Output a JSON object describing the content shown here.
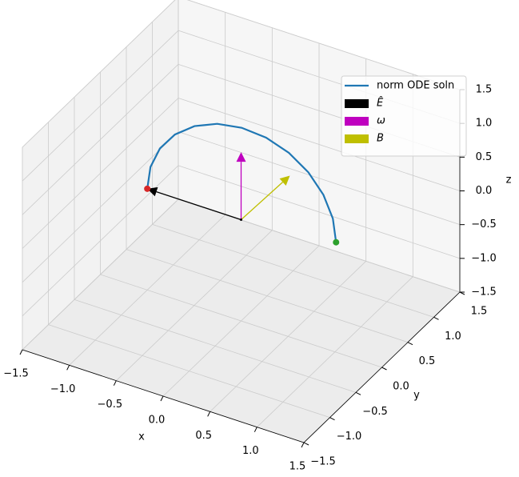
{
  "chart_data": {
    "type": "line3d",
    "xlabel": "x",
    "ylabel": "y",
    "zlabel": "z",
    "xlim": [
      -1.5,
      1.5
    ],
    "ylim": [
      -1.5,
      1.5
    ],
    "zlim": [
      -1.5,
      1.5
    ],
    "xticks": [
      {
        "value": -1.5,
        "label": "−1.5"
      },
      {
        "value": -1,
        "label": "−1.0"
      },
      {
        "value": -0.5,
        "label": "−0.5"
      },
      {
        "value": 0,
        "label": "0.0"
      },
      0.5,
      {
        "value": 1,
        "label": "1.0"
      },
      1.5
    ],
    "yticks": [
      {
        "value": -1.5,
        "label": "−1.5"
      },
      {
        "value": -1,
        "label": "−1.0"
      },
      {
        "value": -0.5,
        "label": "−0.5"
      },
      {
        "value": 0,
        "label": "0.0"
      },
      0.5,
      {
        "value": 1,
        "label": "1.0"
      },
      1.5
    ],
    "zticks": [
      {
        "value": -1.5,
        "label": "−1.5"
      },
      {
        "value": -1,
        "label": "−1.0"
      },
      {
        "value": -0.5,
        "label": "−0.5"
      },
      {
        "value": 0,
        "label": "0.0"
      },
      0.5,
      {
        "value": 1,
        "label": "1.0"
      },
      1.5
    ],
    "grid": true,
    "legend": "upper right",
    "series": [
      {
        "name": "norm ODE soln",
        "color": "#1f77b4",
        "start_color": "#d62728",
        "end_color": "#2ca02c",
        "x": [
          -1.0,
          -0.967,
          -0.87,
          -0.716,
          -0.515,
          -0.281,
          -0.03,
          0.221,
          0.455,
          0.656,
          0.81,
          0.907,
          0.94
        ],
        "y": [
          0,
          0.002,
          0.009,
          0.019,
          0.033,
          0.048,
          0.065,
          0.082,
          0.098,
          0.111,
          0.121,
          0.128,
          0.13
        ],
        "z": [
          0,
          0.337,
          0.65,
          0.919,
          1.126,
          1.256,
          1.3,
          1.256,
          1.126,
          0.919,
          0.65,
          0.337,
          0
        ]
      }
    ],
    "arrows": [
      {
        "name": "Ê",
        "color": "#000000",
        "vector": [
          -1,
          0,
          0
        ]
      },
      {
        "name": "ω",
        "color": "#bf00bf",
        "vector": [
          0,
          0,
          1
        ]
      },
      {
        "name": "B",
        "color": "#bfbf00",
        "vector": [
          0.025,
          0.893,
          0
        ]
      }
    ]
  }
}
